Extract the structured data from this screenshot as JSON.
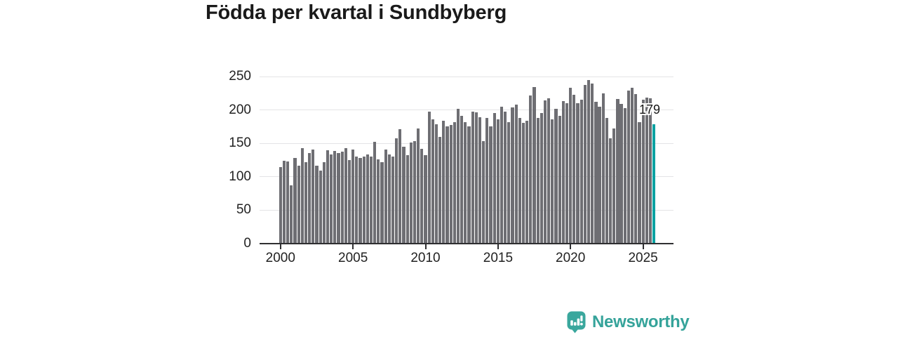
{
  "title": "Födda per kvartal i Sundbyberg",
  "annotation": {
    "label": "179"
  },
  "logo": {
    "text": "Newsworthy"
  },
  "colors": {
    "bar": "#6e6e73",
    "highlight": "#08a2a2",
    "axis": "#2f2f31",
    "grid": "#e4e4e6",
    "tick_text": "#222222",
    "title_text": "#1a1a1a",
    "logo": "#3aa79d"
  },
  "chart_data": {
    "type": "bar",
    "title": "Födda per kvartal i Sundbyberg",
    "xlabel": "",
    "ylabel": "",
    "frequency": "quarterly",
    "start_quarter": "2000 Q1",
    "end_quarter": "2025 Q4",
    "x_tick_labels": [
      "2000",
      "2005",
      "2010",
      "2015",
      "2020",
      "2025"
    ],
    "y_ticks": [
      0,
      50,
      100,
      150,
      200,
      250
    ],
    "y_tick_labels": [
      "0",
      "50",
      "100",
      "150",
      "200",
      "250"
    ],
    "ylim": [
      0,
      250
    ],
    "grid": "horizontal",
    "values": [
      114,
      124,
      123,
      87,
      128,
      117,
      143,
      122,
      136,
      141,
      117,
      109,
      122,
      140,
      133,
      139,
      136,
      138,
      143,
      125,
      141,
      130,
      128,
      130,
      133,
      130,
      152,
      126,
      122,
      141,
      133,
      130,
      158,
      171,
      145,
      132,
      151,
      153,
      172,
      142,
      132,
      198,
      186,
      179,
      160,
      184,
      175,
      178,
      182,
      202,
      191,
      182,
      175,
      198,
      196,
      189,
      153,
      188,
      175,
      195,
      186,
      205,
      198,
      182,
      204,
      208,
      188,
      181,
      184,
      222,
      234,
      188,
      195,
      214,
      217,
      186,
      202,
      191,
      213,
      210,
      233,
      223,
      210,
      215,
      237,
      245,
      239,
      212,
      205,
      225,
      188,
      158,
      172,
      216,
      209,
      203,
      229,
      233,
      224,
      182,
      215,
      219,
      217,
      179
    ],
    "highlight": {
      "index": 103,
      "quarter": "2025 Q4",
      "value": 179,
      "label": "179"
    }
  }
}
